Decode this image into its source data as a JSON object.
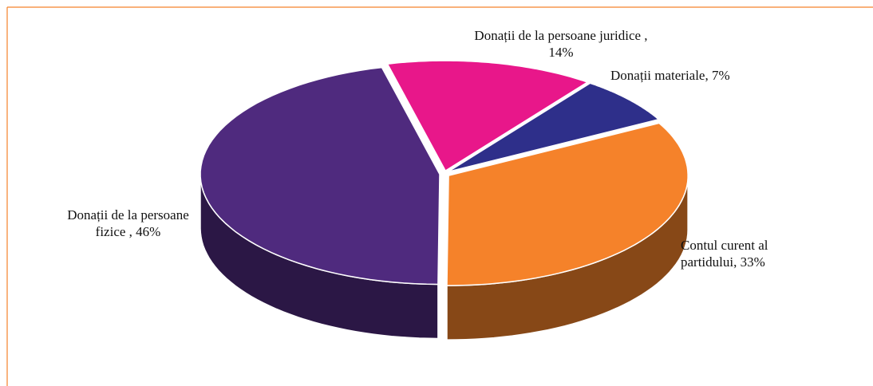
{
  "chart_data": {
    "type": "pie",
    "labels": [
      "Donații de la persoane juridice , 14%",
      "Donații materiale, 7%",
      "Contul curent al partidului, 33%",
      "Donații de la persoane fizice , 46%"
    ],
    "values": [
      14,
      7,
      33,
      46
    ],
    "colors": [
      "#e8178a",
      "#2e2f8a",
      "#f5822a",
      "#4f2a7e"
    ]
  }
}
